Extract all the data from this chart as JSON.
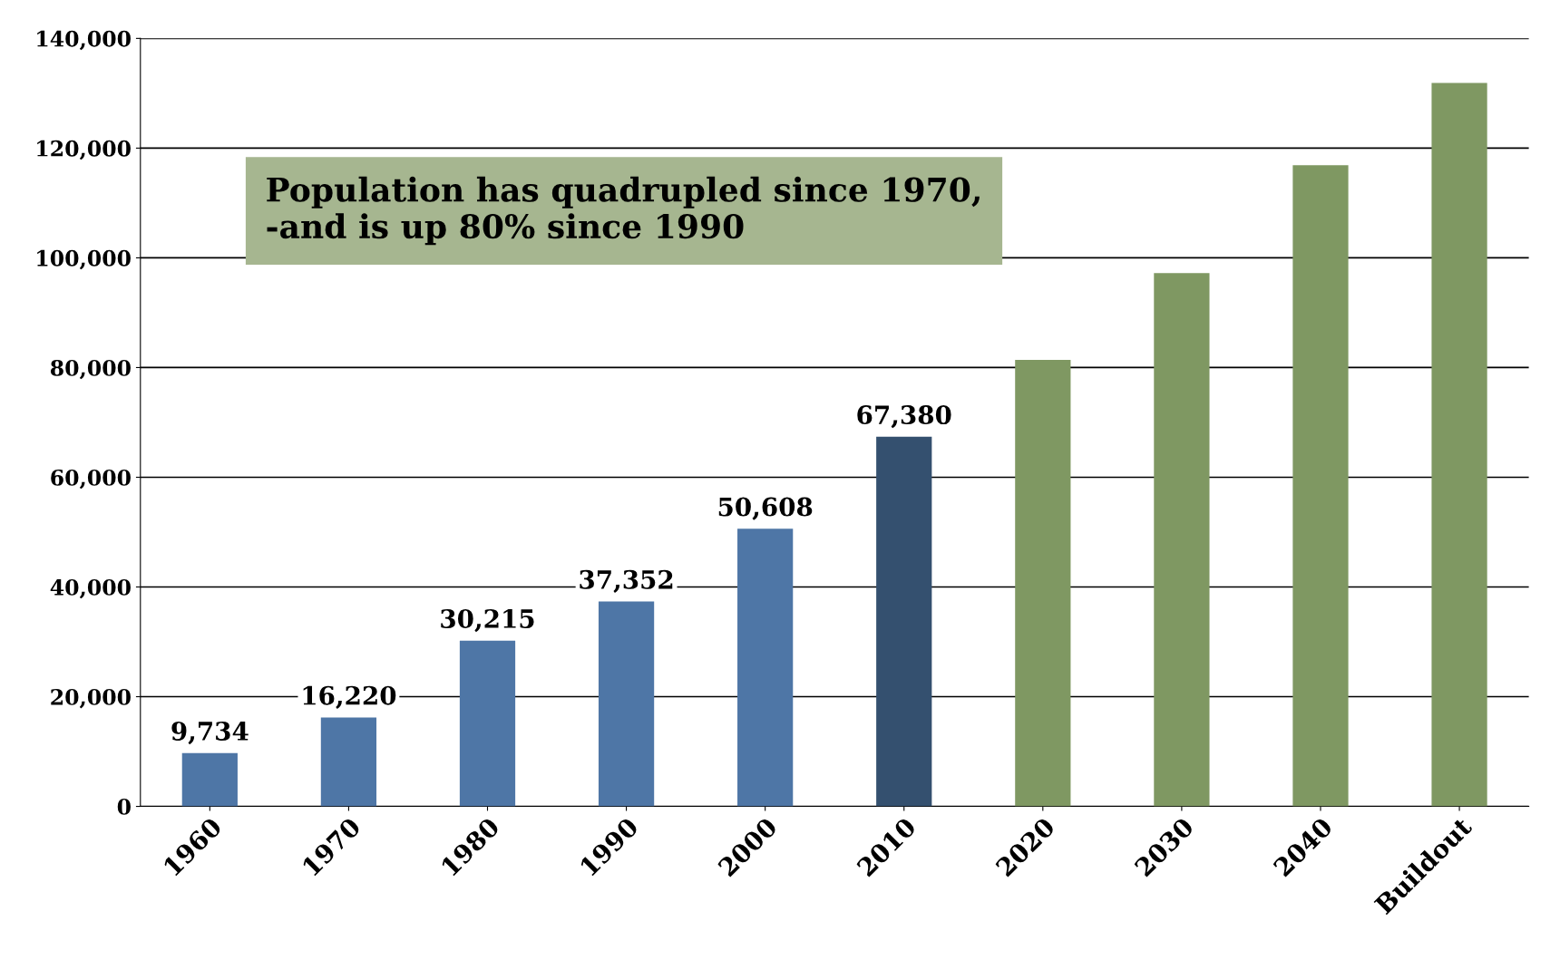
{
  "chart_data": {
    "type": "bar",
    "categories": [
      "1960",
      "1970",
      "1980",
      "1990",
      "2000",
      "2010",
      "2020",
      "2030",
      "2040",
      "Buildout"
    ],
    "values": [
      9734,
      16220,
      30215,
      37352,
      50608,
      67380,
      81400,
      97200,
      116900,
      131900
    ],
    "colors": [
      "#4e76a6",
      "#4e76a6",
      "#4e76a6",
      "#4e76a6",
      "#4e76a6",
      "#34506f",
      "#7f9862",
      "#7f9862",
      "#7f9862",
      "#7f9862"
    ],
    "value_labels": [
      "9,734",
      "16,220",
      "30,215",
      "37,352",
      "50,608",
      "67,380",
      null,
      null,
      null,
      null
    ],
    "ylim": [
      0,
      140000
    ],
    "yticks": [
      0,
      {
        "value": 20000,
        "label": "20,000"
      },
      {
        "value": 40000,
        "label": "40,000"
      },
      {
        "value": 60000,
        "label": "60,000"
      },
      {
        "value": 80000,
        "label": "80,000"
      },
      {
        "value": 100000,
        "label": "100,000"
      },
      {
        "value": 120000,
        "label": "120,000"
      },
      {
        "value": 140000,
        "label": "140,000"
      }
    ],
    "grid": "y",
    "annotations": [
      "Population has quadrupled since 1970,\n-and is up 80% since 1990"
    ]
  }
}
